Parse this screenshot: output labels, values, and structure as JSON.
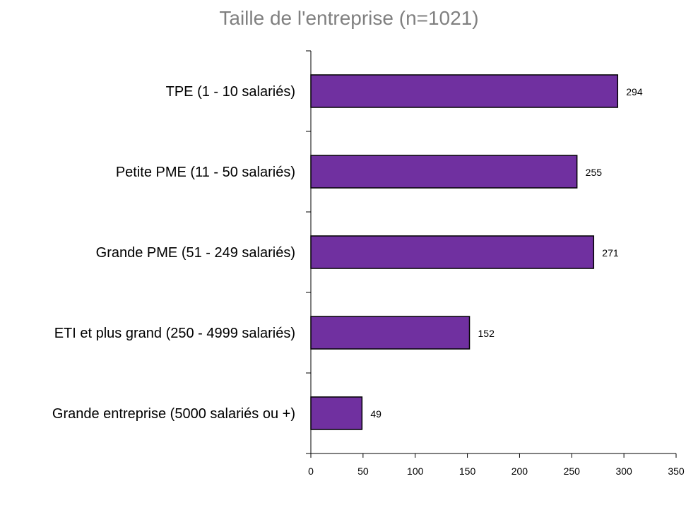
{
  "chart_data": {
    "type": "bar",
    "orientation": "horizontal",
    "title": "Taille de l'entreprise (n=1021)",
    "categories": [
      "TPE (1 - 10 salariés)",
      "Petite PME (11 - 50 salariés)",
      "Grande PME (51 - 249 salariés)",
      "ETI et plus grand (250 - 4999 salariés)",
      "Grande entreprise (5000 salariés ou +)"
    ],
    "values": [
      294,
      255,
      271,
      152,
      49
    ],
    "xlim": [
      0,
      350
    ],
    "xticks": [
      "0",
      "50",
      "100",
      "150",
      "200",
      "250",
      "300",
      "350"
    ],
    "xlabel": "",
    "ylabel": "",
    "grid": false,
    "bar_color": "#7030A0",
    "bar_outline": "#000000",
    "title_color": "#808080"
  }
}
